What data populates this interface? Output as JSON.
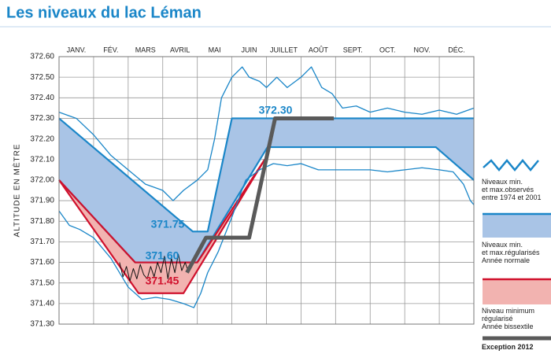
{
  "chart_data": {
    "type": "line",
    "title": "Les niveaux du lac Léman",
    "ylabel": "ALTITUDE EN MÈTRE",
    "categories": [
      "JANV.",
      "FÉV.",
      "MARS",
      "AVRIL",
      "MAI",
      "JUIN",
      "JUILLET",
      "AOÛT",
      "SEPT.",
      "OCT.",
      "NOV.",
      "DÉC."
    ],
    "xlim": [
      0,
      12
    ],
    "ylim": [
      371.3,
      372.6
    ],
    "yticks": [
      {
        "value": 371.3,
        "label": "371.30"
      },
      {
        "value": 371.4,
        "label": "371.40"
      },
      {
        "value": 371.5,
        "label": "371.50"
      },
      {
        "value": 371.6,
        "label": "371.60"
      },
      {
        "value": 371.7,
        "label": "371.70"
      },
      {
        "value": 371.8,
        "label": "371.80"
      },
      {
        "value": 371.9,
        "label": "371.90"
      },
      {
        "value": 372.0,
        "label": "372.00"
      },
      {
        "value": 372.1,
        "label": "372.10"
      },
      {
        "value": 372.2,
        "label": "372.20"
      },
      {
        "value": 372.3,
        "label": "372.30"
      },
      {
        "value": 372.4,
        "label": "372.40"
      },
      {
        "value": 372.5,
        "label": "372.50"
      },
      {
        "value": 372.6,
        "label": "372.60"
      }
    ],
    "grid": true,
    "annotations": [
      {
        "text": "372.30",
        "color": "#1a86c8"
      },
      {
        "text": "371.75",
        "color": "#1a86c8"
      },
      {
        "text": "371.60",
        "color": "#1a86c8"
      },
      {
        "text": "371.45",
        "color": "#d0102c"
      }
    ],
    "series": [
      {
        "name": "Niveaux min.\net max.observés\nentre 1974 et 2001",
        "kind": "observed",
        "color": "#1a86c8",
        "lines": [
          {
            "x": [
              0,
              0.5,
              1,
              1.5,
              2,
              2.5,
              3,
              3.3,
              3.6,
              4,
              4.3,
              4.5,
              4.7,
              5,
              5.3,
              5.5,
              5.8,
              6,
              6.3,
              6.6,
              7,
              7.3,
              7.6,
              7.9,
              8.2,
              8.6,
              9,
              9.5,
              10,
              10.5,
              11,
              11.5,
              12
            ],
            "values": [
              372.33,
              372.3,
              372.22,
              372.12,
              372.05,
              371.98,
              371.95,
              371.9,
              371.95,
              372.0,
              372.05,
              372.2,
              372.4,
              372.5,
              372.55,
              372.5,
              372.48,
              372.45,
              372.5,
              372.45,
              372.5,
              372.55,
              372.45,
              372.42,
              372.35,
              372.36,
              372.33,
              372.35,
              372.33,
              372.32,
              372.34,
              372.32,
              372.35
            ]
          },
          {
            "x": [
              0,
              0.3,
              0.6,
              1,
              1.5,
              2,
              2.4,
              2.8,
              3.2,
              3.6,
              3.9,
              4.1,
              4.3,
              4.6,
              5,
              5.4,
              5.8,
              6.2,
              6.6,
              7,
              7.5,
              8,
              8.5,
              9,
              9.5,
              10,
              10.5,
              11,
              11.4,
              11.7,
              11.9,
              12
            ],
            "values": [
              371.85,
              371.78,
              371.76,
              371.72,
              371.62,
              371.48,
              371.42,
              371.43,
              371.42,
              371.4,
              371.38,
              371.45,
              371.55,
              371.65,
              371.82,
              372.0,
              372.05,
              372.08,
              372.07,
              372.08,
              372.05,
              372.05,
              372.05,
              372.05,
              372.04,
              372.05,
              372.06,
              372.05,
              372.04,
              371.98,
              371.9,
              371.88
            ]
          }
        ]
      },
      {
        "name": "Niveaux min.\net max.régularisés\nAnnée normale",
        "kind": "band",
        "color": "#1a86c8",
        "fill": "#a9c4e6",
        "upper": {
          "x": [
            0,
            3.87,
            4.3,
            5.0,
            12
          ],
          "values": [
            372.3,
            371.75,
            371.75,
            372.3,
            372.3
          ]
        },
        "lower": {
          "x": [
            0,
            2.2,
            4.0,
            6.03,
            10.9,
            12
          ],
          "values": [
            372.0,
            371.6,
            371.6,
            372.16,
            372.16,
            372.0
          ]
        }
      },
      {
        "name": "Niveau minimum\nrégularisé\nAnnée bissextile",
        "kind": "band",
        "color": "#d0102c",
        "fill": "#f2b3b0",
        "upper": {
          "x": [
            0,
            2.2,
            4.0,
            5.95
          ],
          "values": [
            372.0,
            371.6,
            371.6,
            372.1
          ]
        },
        "lower": {
          "x": [
            0,
            2.3,
            3.6,
            5.95
          ],
          "values": [
            372.0,
            371.45,
            371.45,
            372.1
          ]
        }
      },
      {
        "name": "Exception 2012",
        "kind": "line",
        "color": "#5a5a5a",
        "x": [
          3.7,
          4.25,
          5.5,
          6.25,
          7.95
        ],
        "values": [
          371.55,
          371.72,
          371.72,
          372.3,
          372.3
        ],
        "detail": {
          "color": "#111111",
          "x": [
            1.75,
            1.85,
            1.95,
            2.05,
            2.15,
            2.25,
            2.35,
            2.45,
            2.55,
            2.65,
            2.75,
            2.85,
            2.95,
            3.05,
            3.15,
            3.25,
            3.35,
            3.45,
            3.55,
            3.65,
            3.75
          ],
          "values": [
            371.6,
            371.53,
            371.58,
            371.51,
            371.57,
            371.52,
            371.59,
            371.54,
            371.52,
            371.58,
            371.53,
            371.6,
            371.55,
            371.63,
            371.52,
            371.62,
            371.55,
            371.64,
            371.56,
            371.6,
            371.55
          ]
        }
      }
    ]
  }
}
